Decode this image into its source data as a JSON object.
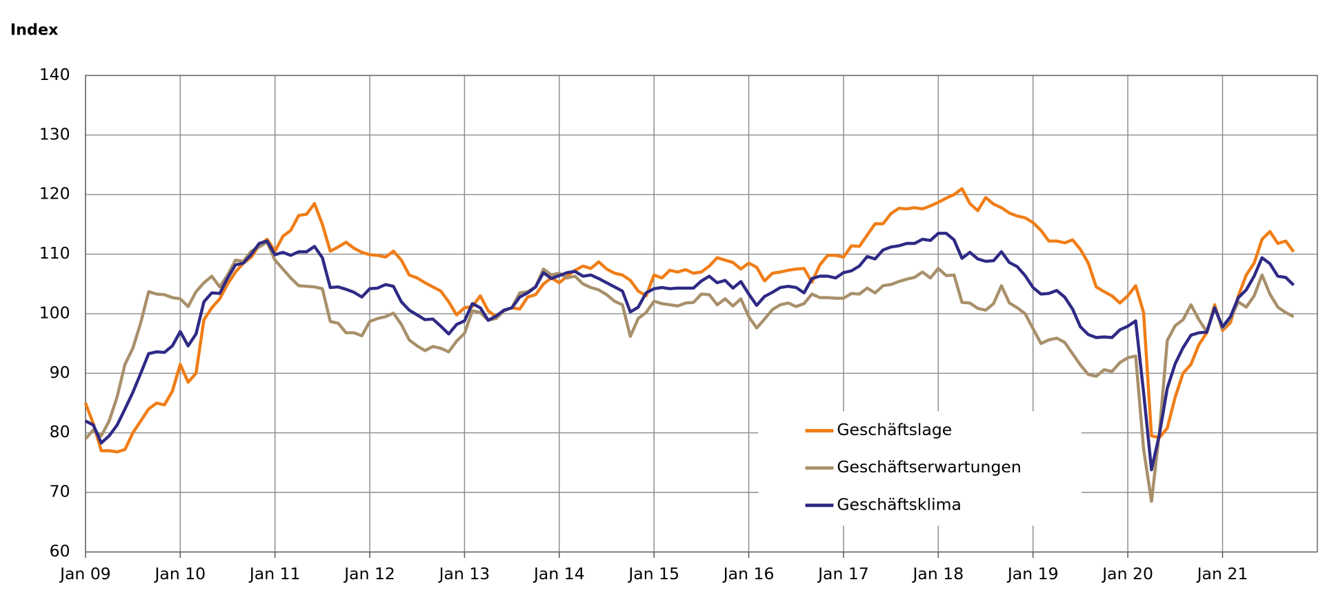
{
  "chart_data": {
    "type": "line",
    "ylabel": "Index",
    "categories": [
      "Jan 09",
      null,
      null,
      null,
      null,
      null,
      null,
      null,
      null,
      null,
      null,
      null,
      "Jan 10",
      null,
      null,
      null,
      null,
      null,
      null,
      null,
      null,
      null,
      null,
      null,
      "Jan 11",
      null,
      null,
      null,
      null,
      null,
      null,
      null,
      null,
      null,
      null,
      null,
      "Jan 12",
      null,
      null,
      null,
      null,
      null,
      null,
      null,
      null,
      null,
      null,
      null,
      "Jan 13",
      null,
      null,
      null,
      null,
      null,
      null,
      null,
      null,
      null,
      null,
      null,
      "Jan 14",
      null,
      null,
      null,
      null,
      null,
      null,
      null,
      null,
      null,
      null,
      null,
      "Jan 15",
      null,
      null,
      null,
      null,
      null,
      null,
      null,
      null,
      null,
      null,
      null,
      "Jan 16",
      null,
      null,
      null,
      null,
      null,
      null,
      null,
      null,
      null,
      null,
      null,
      "Jan 17",
      null,
      null,
      null,
      null,
      null,
      null,
      null,
      null,
      null,
      null,
      null,
      "Jan 18",
      null,
      null,
      null,
      null,
      null,
      null,
      null,
      null,
      null,
      null,
      null,
      "Jan 19",
      null,
      null,
      null,
      null,
      null,
      null,
      null,
      null,
      null,
      null,
      null,
      "Jan 20",
      null,
      null,
      null,
      null,
      null,
      null,
      null,
      null,
      null,
      null,
      null,
      "Jan 21",
      null,
      null,
      null,
      null,
      null,
      null,
      null,
      null,
      null,
      null,
      null
    ],
    "series": [
      {
        "name": "Geschäftslage",
        "color": "#f07d16",
        "values": [
          85,
          81.5,
          77,
          77,
          76.8,
          77.2,
          80,
          82,
          84,
          85,
          84.7,
          87,
          91.5,
          88.5,
          90,
          99,
          101,
          102.5,
          105,
          107,
          108.5,
          109.5,
          111.5,
          112.5,
          110.5,
          113,
          114,
          116.5,
          116.7,
          118.5,
          115,
          110.5,
          111.2,
          112,
          111,
          110.3,
          109.9,
          109.8,
          109.5,
          110.5,
          109,
          106.5,
          106,
          105.2,
          104.5,
          103.8,
          102,
          99.8,
          101,
          101.2,
          103,
          100.5,
          99.5,
          100.5,
          101,
          100.8,
          102.8,
          103.2,
          105,
          106,
          105.2,
          106.3,
          107.3,
          108,
          107.6,
          108.7,
          107.5,
          106.8,
          106.5,
          105.6,
          103.8,
          103,
          106.5,
          106,
          107.3,
          107,
          107.4,
          106.8,
          107,
          108,
          109.4,
          109,
          108.6,
          107.5,
          108.5,
          107.8,
          105.5,
          106.8,
          107,
          107.3,
          107.5,
          107.6,
          105.3,
          108.2,
          109.8,
          109.8,
          109.5,
          111.4,
          111.3,
          113.2,
          115.1,
          115.1,
          116.8,
          117.7,
          117.6,
          117.8,
          117.6,
          118.1,
          118.7,
          119.4,
          120,
          121,
          118.5,
          117.3,
          119.5,
          118.4,
          117.8,
          116.9,
          116.4,
          116.1,
          115.3,
          114,
          112.2,
          112.2,
          111.9,
          112.4,
          110.8,
          108.5,
          104.5,
          103.7,
          103,
          101.8,
          103,
          104.7,
          100.2,
          79.5,
          79.2,
          80.8,
          86,
          90,
          91.5,
          94.8,
          96.8,
          101.5,
          97.2,
          98.5,
          103,
          106.5,
          108.5,
          112.5,
          113.8,
          111.8,
          112.2,
          110.4,
          null,
          null
        ]
      },
      {
        "name": "Geschäftserwartungen",
        "color": "#a8906b",
        "values": [
          79,
          80.5,
          79.5,
          82,
          86,
          91.5,
          94.2,
          98.5,
          103.7,
          103.3,
          103.2,
          102.7,
          102.5,
          101.2,
          103.7,
          105.2,
          106.3,
          104.5,
          106.5,
          109,
          108.8,
          110.5,
          111.2,
          112,
          109,
          107.5,
          106,
          104.7,
          104.6,
          104.5,
          104.2,
          98.7,
          98.4,
          96.8,
          96.8,
          96.3,
          98.7,
          99.2,
          99.5,
          100.1,
          98.2,
          95.6,
          94.6,
          93.8,
          94.5,
          94.2,
          93.6,
          95.4,
          96.7,
          100.5,
          100.2,
          98.9,
          99.2,
          100.5,
          101,
          103.5,
          103.7,
          104.5,
          107.5,
          106.5,
          106.8,
          106,
          106.3,
          105,
          104.4,
          104,
          103.2,
          102.1,
          101.5,
          96.2,
          99.2,
          100.2,
          102.1,
          101.7,
          101.5,
          101.3,
          101.8,
          101.9,
          103.3,
          103.2,
          101.5,
          102.5,
          101.3,
          102.5,
          99.5,
          97.6,
          99.1,
          100.7,
          101.5,
          101.8,
          101.2,
          101.7,
          103.3,
          102.7,
          102.7,
          102.6,
          102.6,
          103.4,
          103.3,
          104.3,
          103.5,
          104.7,
          104.9,
          105.4,
          105.8,
          106.1,
          107,
          106,
          107.6,
          106.4,
          106.5,
          101.9,
          101.8,
          100.9,
          100.6,
          101.7,
          104.7,
          101.8,
          101,
          100,
          97.5,
          95,
          95.6,
          95.9,
          95.2,
          93.3,
          91.4,
          89.8,
          89.5,
          90.6,
          90.3,
          91.8,
          92.6,
          92.9,
          77.3,
          68.5,
          80,
          95.5,
          98,
          99,
          101.5,
          99,
          97,
          101.1,
          97.5,
          99.2,
          102,
          101.1,
          103,
          106.5,
          103.3,
          101.1,
          100.2,
          99.5,
          null,
          null
        ]
      },
      {
        "name": "Geschäftsklima",
        "color": "#2e2a85",
        "values": [
          82,
          81.3,
          78.3,
          79.5,
          81.3,
          84,
          86.8,
          90,
          93.3,
          93.6,
          93.5,
          94.6,
          97,
          94.6,
          96.6,
          102,
          103.5,
          103.4,
          106,
          108.2,
          108.5,
          110,
          111.8,
          112.2,
          109.9,
          110.3,
          109.8,
          110.4,
          110.4,
          111.3,
          109.4,
          104.4,
          104.5,
          104.1,
          103.6,
          102.8,
          104.2,
          104.3,
          104.9,
          104.6,
          102,
          100.6,
          99.8,
          99,
          99.1,
          97.9,
          96.6,
          98.2,
          98.8,
          101.7,
          101,
          98.9,
          99.6,
          100.6,
          101,
          102.8,
          103.5,
          104.5,
          106.9,
          105.9,
          106.4,
          106.9,
          107.1,
          106.3,
          106.5,
          105.9,
          105.2,
          104.5,
          103.8,
          100.3,
          101.1,
          103.5,
          104.2,
          104.4,
          104.2,
          104.3,
          104.3,
          104.3,
          105.5,
          106.3,
          105.2,
          105.6,
          104.3,
          105.4,
          103.3,
          101.4,
          102.9,
          103.6,
          104.4,
          104.6,
          104.4,
          103.5,
          105.9,
          106.3,
          106.3,
          106,
          106.9,
          107.2,
          108,
          109.6,
          109.2,
          110.7,
          111.2,
          111.4,
          111.8,
          111.8,
          112.5,
          112.3,
          113.5,
          113.5,
          112.4,
          109.3,
          110.3,
          109.2,
          108.8,
          108.9,
          110.4,
          108.6,
          107.9,
          106.4,
          104.4,
          103.3,
          103.4,
          103.9,
          102.8,
          100.8,
          97.8,
          96.5,
          96,
          96.1,
          96,
          97.3,
          97.9,
          98.8,
          86.8,
          73.8,
          79.7,
          87.5,
          91.6,
          94.3,
          96.4,
          96.8,
          96.9,
          101,
          97.8,
          99.5,
          102.7,
          104,
          106.3,
          109.4,
          108.4,
          106.3,
          106.1,
          104.8,
          null,
          null
        ]
      }
    ],
    "ylim": [
      60,
      140
    ],
    "yticks": [
      60,
      70,
      80,
      90,
      100,
      110,
      120,
      130,
      140
    ],
    "grid": true,
    "legend": "lower-center"
  }
}
